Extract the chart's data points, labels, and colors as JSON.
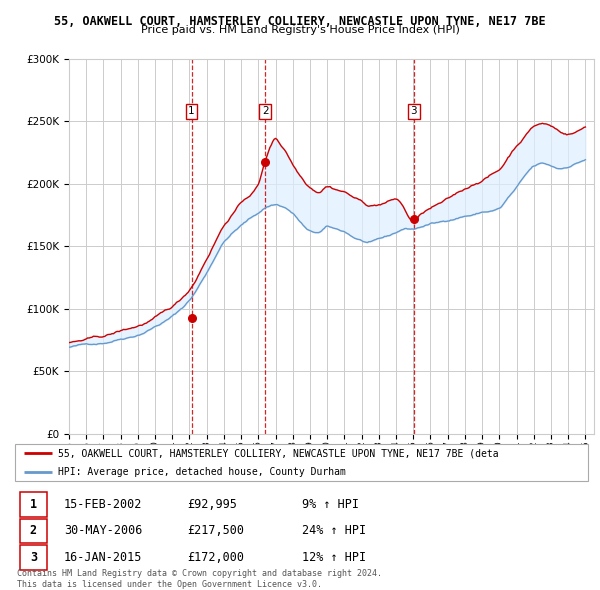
{
  "title1": "55, OAKWELL COURT, HAMSTERLEY COLLIERY, NEWCASTLE UPON TYNE, NE17 7BE",
  "title2": "Price paid vs. HM Land Registry's House Price Index (HPI)",
  "legend_red": "55, OAKWELL COURT, HAMSTERLEY COLLIERY, NEWCASTLE UPON TYNE, NE17 7BE (deta",
  "legend_blue": "HPI: Average price, detached house, County Durham",
  "sale1_date": "15-FEB-2002",
  "sale1_price": 92995,
  "sale1_label": "9% ↑ HPI",
  "sale2_date": "30-MAY-2006",
  "sale2_price": 217500,
  "sale2_label": "24% ↑ HPI",
  "sale3_date": "16-JAN-2015",
  "sale3_price": 172000,
  "sale3_label": "12% ↑ HPI",
  "copyright": "Contains HM Land Registry data © Crown copyright and database right 2024.\nThis data is licensed under the Open Government Licence v3.0.",
  "red_color": "#cc0000",
  "blue_color": "#6699cc",
  "fill_color": "#ddeeff",
  "vline_color": "#cc0000",
  "background_color": "#ffffff",
  "grid_color": "#cccccc",
  "ylim": [
    0,
    300000
  ],
  "yticks": [
    0,
    50000,
    100000,
    150000,
    200000,
    250000,
    300000
  ],
  "sale_dates_numeric": [
    2002.12,
    2006.41,
    2015.04
  ],
  "hpi_keypoints": [
    [
      1995.0,
      68000
    ],
    [
      1996.0,
      70000
    ],
    [
      1997.0,
      72000
    ],
    [
      1998.0,
      76000
    ],
    [
      1999.0,
      80000
    ],
    [
      2000.0,
      87000
    ],
    [
      2001.0,
      95000
    ],
    [
      2002.0,
      108000
    ],
    [
      2003.0,
      130000
    ],
    [
      2004.0,
      155000
    ],
    [
      2005.0,
      168000
    ],
    [
      2006.0,
      178000
    ],
    [
      2006.5,
      183000
    ],
    [
      2007.0,
      185000
    ],
    [
      2007.5,
      183000
    ],
    [
      2008.0,
      178000
    ],
    [
      2008.5,
      170000
    ],
    [
      2009.0,
      163000
    ],
    [
      2009.5,
      162000
    ],
    [
      2010.0,
      166000
    ],
    [
      2010.5,
      164000
    ],
    [
      2011.0,
      162000
    ],
    [
      2011.5,
      158000
    ],
    [
      2012.0,
      155000
    ],
    [
      2012.5,
      153000
    ],
    [
      2013.0,
      155000
    ],
    [
      2013.5,
      157000
    ],
    [
      2014.0,
      160000
    ],
    [
      2014.5,
      163000
    ],
    [
      2015.0,
      163000
    ],
    [
      2015.5,
      165000
    ],
    [
      2016.0,
      167000
    ],
    [
      2016.5,
      168000
    ],
    [
      2017.0,
      170000
    ],
    [
      2017.5,
      172000
    ],
    [
      2018.0,
      174000
    ],
    [
      2018.5,
      175000
    ],
    [
      2019.0,
      177000
    ],
    [
      2019.5,
      178000
    ],
    [
      2020.0,
      180000
    ],
    [
      2020.5,
      188000
    ],
    [
      2021.0,
      196000
    ],
    [
      2021.5,
      205000
    ],
    [
      2022.0,
      212000
    ],
    [
      2022.5,
      214000
    ],
    [
      2023.0,
      212000
    ],
    [
      2023.5,
      210000
    ],
    [
      2024.0,
      212000
    ],
    [
      2024.5,
      215000
    ],
    [
      2025.0,
      218000
    ]
  ],
  "red_keypoints": [
    [
      1995.0,
      72000
    ],
    [
      1996.0,
      74000
    ],
    [
      1997.0,
      76000
    ],
    [
      1998.0,
      80000
    ],
    [
      1999.0,
      84000
    ],
    [
      2000.0,
      90000
    ],
    [
      2001.0,
      98000
    ],
    [
      2002.0,
      112000
    ],
    [
      2003.0,
      138000
    ],
    [
      2004.0,
      165000
    ],
    [
      2005.0,
      183000
    ],
    [
      2006.0,
      198000
    ],
    [
      2006.41,
      217500
    ],
    [
      2006.7,
      228000
    ],
    [
      2007.0,
      235000
    ],
    [
      2007.3,
      230000
    ],
    [
      2007.6,
      225000
    ],
    [
      2008.0,
      215000
    ],
    [
      2008.5,
      205000
    ],
    [
      2009.0,
      198000
    ],
    [
      2009.5,
      195000
    ],
    [
      2010.0,
      200000
    ],
    [
      2010.5,
      198000
    ],
    [
      2011.0,
      196000
    ],
    [
      2011.5,
      192000
    ],
    [
      2012.0,
      188000
    ],
    [
      2012.5,
      185000
    ],
    [
      2013.0,
      186000
    ],
    [
      2013.5,
      188000
    ],
    [
      2014.0,
      190000
    ],
    [
      2015.04,
      172000
    ],
    [
      2015.5,
      178000
    ],
    [
      2016.0,
      182000
    ],
    [
      2016.5,
      185000
    ],
    [
      2017.0,
      188000
    ],
    [
      2017.5,
      192000
    ],
    [
      2018.0,
      196000
    ],
    [
      2018.5,
      200000
    ],
    [
      2019.0,
      204000
    ],
    [
      2019.5,
      208000
    ],
    [
      2020.0,
      212000
    ],
    [
      2020.5,
      222000
    ],
    [
      2021.0,
      232000
    ],
    [
      2021.5,
      240000
    ],
    [
      2022.0,
      248000
    ],
    [
      2022.5,
      250000
    ],
    [
      2023.0,
      248000
    ],
    [
      2023.5,
      244000
    ],
    [
      2024.0,
      242000
    ],
    [
      2024.5,
      244000
    ],
    [
      2025.0,
      248000
    ]
  ]
}
